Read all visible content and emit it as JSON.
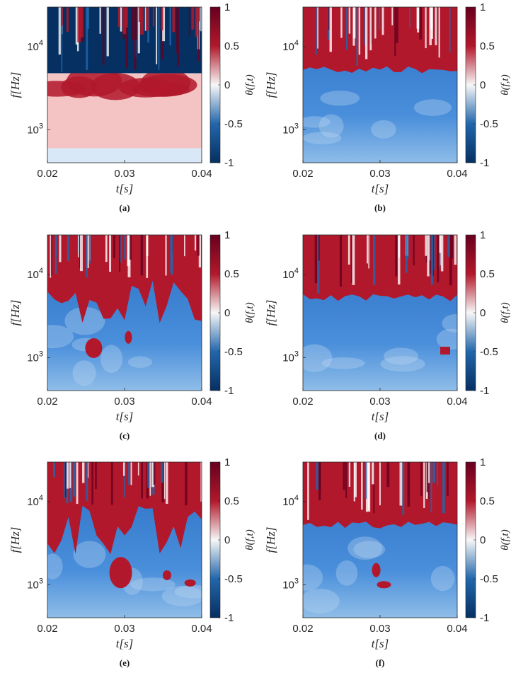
{
  "figure": {
    "panels": [
      {
        "id": "a",
        "caption": "(a)",
        "boundary": "upper",
        "chart_data": {
          "type": "heatmap",
          "xlabel": "t[s]",
          "ylabel": "f[Hz]",
          "colorbar_label": "θ(f,t)",
          "x_ticks": [
            "0.02",
            "0.03",
            "0.04"
          ],
          "xlim": [
            0.02,
            0.04
          ],
          "y_ticks": [
            "10^3",
            "10^4"
          ],
          "yscale": "log",
          "ylim": [
            400,
            30000
          ],
          "colorbar_ticks": [
            "1",
            "0.5",
            "0",
            "-0.5",
            "-1"
          ],
          "clim": [
            -1,
            1
          ],
          "description": "oscillating red/blue above ~4.5e3 Hz, mostly red/white below, light blue near bottom"
        }
      },
      {
        "id": "b",
        "caption": "(b)",
        "boundary": "lower",
        "chart_data": {
          "type": "heatmap",
          "xlabel": "t[s]",
          "ylabel": "f[Hz]",
          "colorbar_label": "θ(f,t)",
          "x_ticks": [
            "0.02",
            "0.03",
            "0.04"
          ],
          "xlim": [
            0.02,
            0.04
          ],
          "y_ticks": [
            "10^3",
            "10^4"
          ],
          "yscale": "log",
          "ylim": [
            400,
            30000
          ],
          "colorbar_ticks": [
            "1",
            "0.5",
            "0",
            "-0.5",
            "-1"
          ],
          "clim": [
            -1,
            1
          ],
          "description": "red band above ~5.5e3 Hz, blue below"
        }
      },
      {
        "id": "c",
        "caption": "(c)",
        "boundary": "fingers",
        "chart_data": {
          "type": "heatmap",
          "xlabel": "t[s]",
          "ylabel": "f[Hz]",
          "colorbar_label": "θ(f,t)",
          "x_ticks": [
            "0.02",
            "0.03",
            "0.04"
          ],
          "xlim": [
            0.02,
            0.04
          ],
          "y_ticks": [
            "10^3",
            "10^4"
          ],
          "yscale": "log",
          "ylim": [
            400,
            30000
          ],
          "colorbar_ticks": [
            "1",
            "0.5",
            "0",
            "-0.5",
            "-1"
          ],
          "clim": [
            -1,
            1
          ],
          "description": "red fingers reaching down to ~1e3 Hz, blue below"
        }
      },
      {
        "id": "d",
        "caption": "(d)",
        "boundary": "lower",
        "chart_data": {
          "type": "heatmap",
          "xlabel": "t[s]",
          "ylabel": "f[Hz]",
          "colorbar_label": "θ(f,t)",
          "x_ticks": [
            "0.02",
            "0.03",
            "0.04"
          ],
          "xlim": [
            0.02,
            0.04
          ],
          "y_ticks": [
            "10^3",
            "10^4"
          ],
          "yscale": "log",
          "ylim": [
            400,
            30000
          ],
          "colorbar_ticks": [
            "1",
            "0.5",
            "0",
            "-0.5",
            "-1"
          ],
          "clim": [
            -1,
            1
          ],
          "description": "red band above ~6e3 Hz, blue below with small red spot near t=0.038"
        }
      },
      {
        "id": "e",
        "caption": "(e)",
        "boundary": "fingers",
        "chart_data": {
          "type": "heatmap",
          "xlabel": "t[s]",
          "ylabel": "f[Hz]",
          "colorbar_label": "θ(f,t)",
          "x_ticks": [
            "0.02",
            "0.03",
            "0.04"
          ],
          "xlim": [
            0.02,
            0.04
          ],
          "y_ticks": [
            "10^3",
            "10^4"
          ],
          "yscale": "log",
          "ylim": [
            400,
            30000
          ],
          "colorbar_ticks": [
            "1",
            "0.5",
            "0",
            "-0.5",
            "-1"
          ],
          "clim": [
            -1,
            1
          ],
          "description": "red fingers at top, red blobs near t=0.029 and t=0.035-0.038 around 1e3 Hz"
        }
      },
      {
        "id": "f",
        "caption": "(f)",
        "boundary": "lower",
        "chart_data": {
          "type": "heatmap",
          "xlabel": "t[s]",
          "ylabel": "f[Hz]",
          "colorbar_label": "θ(f,t)",
          "x_ticks": [
            "0.02",
            "0.03",
            "0.04"
          ],
          "xlim": [
            0.02,
            0.04
          ],
          "y_ticks": [
            "10^3",
            "10^4"
          ],
          "yscale": "log",
          "ylim": [
            400,
            30000
          ],
          "colorbar_ticks": [
            "1",
            "0.5",
            "0",
            "-0.5",
            "-1"
          ],
          "clim": [
            -1,
            1
          ],
          "description": "red band above ~6e3 Hz, blue below with small red blobs near t=0.03"
        }
      }
    ],
    "colors": {
      "red": "#b2182b",
      "dark_red": "#67001f",
      "blue": "#2166ac",
      "dark_blue": "#053061",
      "white": "#f7f7f7"
    }
  }
}
